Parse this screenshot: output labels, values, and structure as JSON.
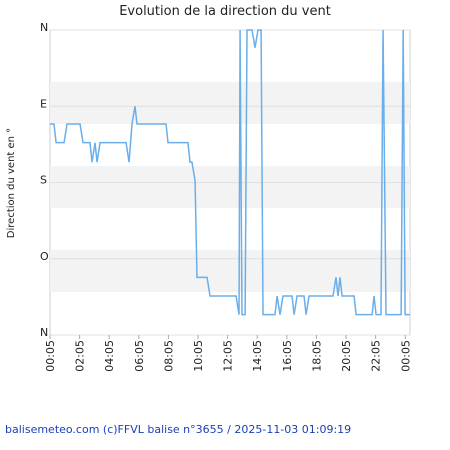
{
  "chart_data": {
    "type": "line",
    "title": "Evolution de la direction du vent",
    "y_label": "Direction du vent en °",
    "footer": "balisemeteo.com (c)FFVL balise n°3655 / 2025-11-03 01:09:19",
    "x": [
      0,
      0.27,
      0.41,
      0.95,
      1.15,
      2.03,
      2.23,
      2.7,
      2.84,
      3.04,
      3.18,
      3.38,
      5.14,
      5.34,
      5.54,
      5.74,
      5.88,
      7.84,
      7.97,
      9.32,
      9.46,
      9.59,
      9.8,
      9.93,
      10.61,
      10.81,
      12.57,
      12.77,
      12.84,
      12.97,
      13.18,
      13.31,
      13.65,
      13.85,
      14.05,
      14.26,
      14.39,
      15.2,
      15.34,
      15.54,
      15.74,
      16.35,
      16.49,
      16.69,
      17.16,
      17.3,
      17.5,
      19.12,
      19.32,
      19.46,
      19.59,
      19.73,
      20.54,
      20.68,
      21.76,
      21.89,
      22.03,
      22.36,
      22.5,
      22.7,
      23.72,
      23.86,
      23.99,
      24.32
    ],
    "series": [
      {
        "name": "Direction",
        "color": "#6aaeea",
        "values": [
          111,
          111,
          133,
          133,
          111,
          111,
          133,
          133,
          156,
          133,
          156,
          133,
          133,
          156,
          111,
          90,
          111,
          111,
          133,
          133,
          156,
          156,
          178,
          292,
          292,
          314,
          314,
          336,
          0,
          336,
          336,
          0,
          0,
          21,
          0,
          0,
          336,
          336,
          314,
          336,
          314,
          314,
          336,
          314,
          314,
          336,
          314,
          314,
          292,
          314,
          292,
          314,
          314,
          336,
          336,
          314,
          336,
          336,
          0,
          336,
          336,
          0,
          336,
          336
        ]
      }
    ],
    "xlim": [
      0,
      24.32
    ],
    "xticks": [
      {
        "value": 0,
        "label": "00:05"
      },
      {
        "value": 2,
        "label": "02:05"
      },
      {
        "value": 4,
        "label": "04:05"
      },
      {
        "value": 6,
        "label": "06:05"
      },
      {
        "value": 8,
        "label": "08:05"
      },
      {
        "value": 10,
        "label": "10:05"
      },
      {
        "value": 12,
        "label": "12:05"
      },
      {
        "value": 14,
        "label": "14:05"
      },
      {
        "value": 16,
        "label": "16:05"
      },
      {
        "value": 18,
        "label": "18:05"
      },
      {
        "value": 20,
        "label": "20:05"
      },
      {
        "value": 22,
        "label": "22:05"
      },
      {
        "value": 24,
        "label": "00:05"
      }
    ],
    "ylim": [
      360,
      0
    ],
    "yticks": [
      {
        "value": 0,
        "label": "N"
      },
      {
        "value": 90,
        "label": "E"
      },
      {
        "value": 180,
        "label": "S"
      },
      {
        "value": 270,
        "label": "O"
      },
      {
        "value": 360,
        "label": "N"
      }
    ]
  }
}
